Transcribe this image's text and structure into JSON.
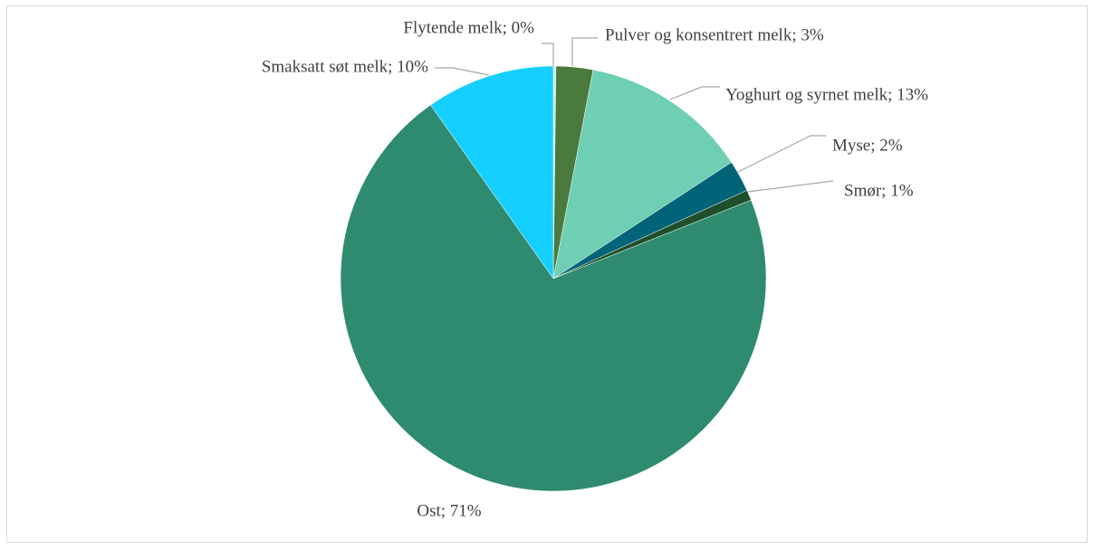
{
  "chart_data": {
    "type": "pie",
    "values": [
      0.2,
      2.8,
      12.8,
      2.4,
      0.8,
      71.3,
      9.8
    ],
    "value_labels": [
      "Flytende melk; 0%",
      "Pulver og konsentrert melk; 3%",
      "Yoghurt og syrnet melk; 13%",
      "Myse; 2%",
      "Smør; 1%",
      "Ost; 71%",
      "Smaksatt søt melk; 10%"
    ],
    "colors": [
      "#c9e6da",
      "#4a7a3e",
      "#6ecfb3",
      "#006478",
      "#1f4e2a",
      "#2e8b6f",
      "#14cfff"
    ]
  }
}
